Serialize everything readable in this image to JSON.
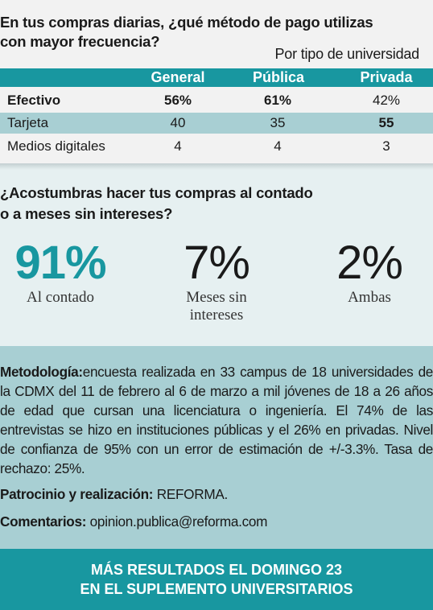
{
  "question1": {
    "line1": "En tus compras diarias, ¿qué método de pago utilizas",
    "line2": "con mayor frecuencia?"
  },
  "subtitle": "Por tipo de universidad",
  "table": {
    "headers": [
      "General",
      "Pública",
      "Privada"
    ],
    "rows": [
      {
        "label": "Efectivo",
        "general": "56%",
        "publica": "61%",
        "privada": "42%"
      },
      {
        "label": "Tarjeta",
        "general": "40",
        "publica": "35",
        "privada": "55"
      },
      {
        "label": "Medios digitales",
        "general": "4",
        "publica": "4",
        "privada": "3"
      }
    ]
  },
  "question2": {
    "line1": "¿Acostumbras hacer tus compras al contado",
    "line2": "o a meses sin intereses?"
  },
  "stats": [
    {
      "value": "91%",
      "label1": "Al contado",
      "label2": ""
    },
    {
      "value": "7%",
      "label1": "Meses sin",
      "label2": "intereses"
    },
    {
      "value": "2%",
      "label1": "Ambas",
      "label2": ""
    }
  ],
  "methodology": {
    "label": "Metodología:",
    "text": "encuesta realizada en 33 campus de 18 universidades de la CDMX del 11 de febrero al 6 de marzo a mil jóvenes de 18 a 26 años de edad que cursan una licenciatura o ingeniería. El 74% de las entrevistas se hizo en instituciones públicas y el 26% en privadas. Nivel de confianza de 95% con un error de estimación de +/-3.3%. Tasa de rechazo: 25%.",
    "sponsor_label": "Patrocinio y realización:",
    "sponsor": "REFORMA.",
    "comments_label": "Comentarios:",
    "comments": "opinion.publica@reforma.com"
  },
  "footer": {
    "line1": "MÁS RESULTADOS EL DOMINGO 23",
    "line2": "EN EL SUPLEMENTO UNIVERSITARIOS"
  },
  "colors": {
    "accent": "#1897a0",
    "light_teal": "#a8cfd3"
  }
}
